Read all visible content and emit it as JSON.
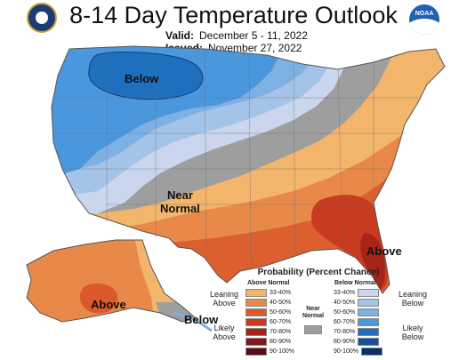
{
  "header": {
    "title": "8-14 Day Temperature Outlook",
    "valid_label": "Valid:",
    "valid_value": "December 5 - 11, 2022",
    "issued_label": "Issued:",
    "issued_value": "November 27, 2022"
  },
  "logos": {
    "left": "doc-seal-icon",
    "right": "noaa-logo-icon",
    "right_text": "NOAA"
  },
  "map_labels": {
    "below_main": "Below",
    "near_normal_1": "Near",
    "near_normal_2": "Normal",
    "above_florida": "Above",
    "above_alaska": "Above",
    "below_alaska": "Below"
  },
  "colors": {
    "above_33_40": "#f2b56b",
    "above_40_50": "#e8894a",
    "above_50_60": "#db5a2c",
    "above_60_70": "#c83b1f",
    "above_70_80": "#a62418",
    "above_80_90": "#82161a",
    "above_90_100": "#5a0d10",
    "below_33_40": "#c9d6ee",
    "below_40_50": "#a4c3e8",
    "below_50_60": "#7fb0e3",
    "below_60_70": "#4b97dd",
    "below_70_80": "#1f6fbf",
    "below_80_90": "#17509a",
    "below_90_100": "#0c2d66",
    "near_normal": "#9e9e9e"
  },
  "legend": {
    "title": "Probability (Percent Chance)",
    "above_header": "Above Normal",
    "below_header": "Below Normal",
    "near_normal": "Near Normal",
    "leaning_above_1": "Leaning",
    "leaning_above_2": "Above",
    "likely_above_1": "Likely",
    "likely_above_2": "Above",
    "leaning_below_1": "Leaning",
    "leaning_below_2": "Below",
    "likely_below_1": "Likely",
    "likely_below_2": "Below",
    "above_ranges": [
      "33-40%",
      "40-50%",
      "50-60%",
      "60-70%",
      "70-80%",
      "80-90%",
      "90-100%"
    ],
    "below_ranges": [
      "33-40%",
      "40-50%",
      "50-60%",
      "60-70%",
      "70-80%",
      "80-90%",
      "90-100%"
    ]
  }
}
